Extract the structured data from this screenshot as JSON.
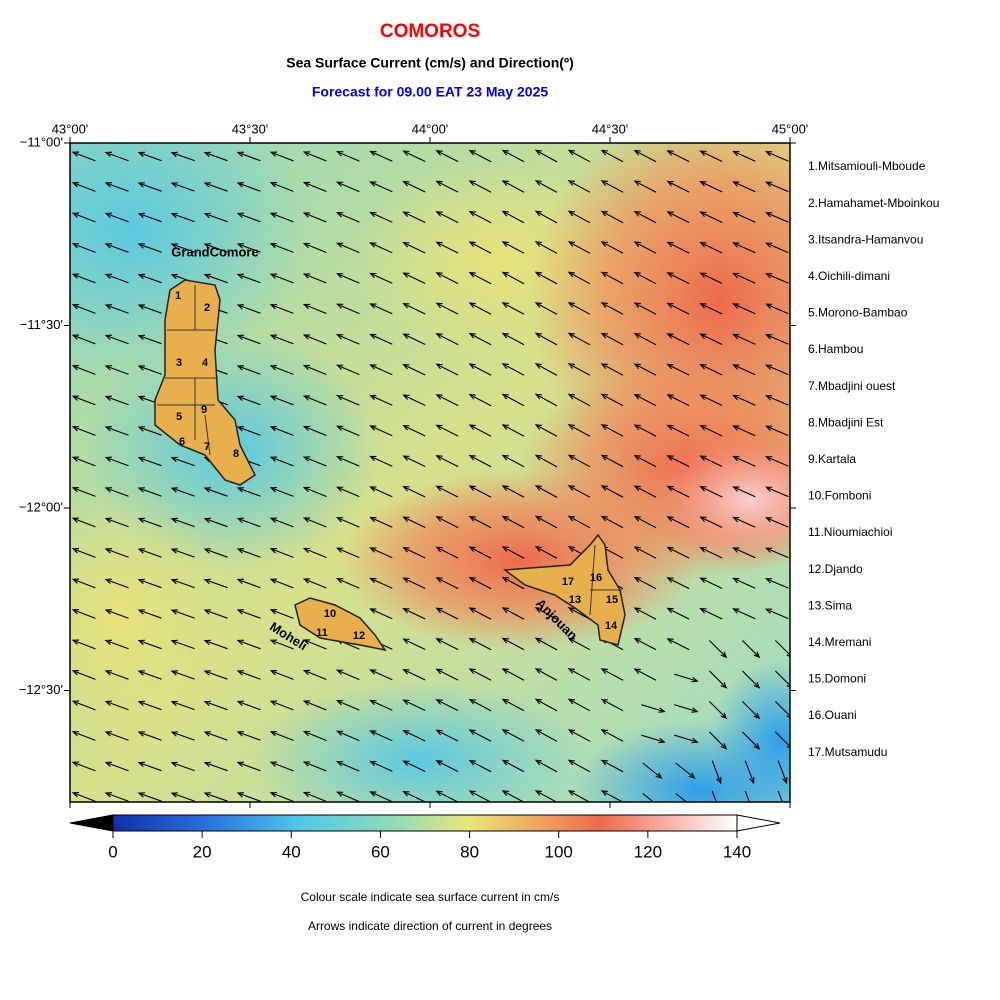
{
  "header": {
    "title": "COMOROS",
    "subtitle": "Sea Surface Current (cm/s) and Direction(º)",
    "forecast": "Forecast for  09.00 EAT 23 May 2025"
  },
  "map": {
    "x_ticks": [
      "43°00'",
      "43°30'",
      "44°00'",
      "44°30'",
      "45°00'"
    ],
    "y_ticks": [
      "−11°00'",
      "−11°30'",
      "−12°00'",
      "−12°30'"
    ],
    "islands": [
      "GrandComore",
      "Moheli",
      "Anjouan"
    ],
    "numbers": [
      "1",
      "2",
      "3",
      "4",
      "5",
      "6",
      "7",
      "8",
      "9",
      "10",
      "11",
      "12",
      "13",
      "14",
      "15",
      "16",
      "17"
    ]
  },
  "regions": [
    "1.Mitsamiouli-Mboude",
    "2.Hamahamet-Mboinkou",
    "3.Itsandra-Hamanvou",
    "4.Oichili-dimani",
    "5.Morono-Bambao",
    "6.Hambou",
    "7.Mbadjini ouest",
    "8.Mbadjini Est",
    "9.Kartala",
    "10.Fomboni",
    "11.Nioumiachioi",
    "12.Djando",
    "13.Sima",
    "14.Mremani",
    "15.Domoni",
    "16.Ouani",
    "17.Mutsamudu"
  ],
  "colorbar": {
    "ticks": [
      0,
      20,
      40,
      60,
      80,
      100,
      120,
      140
    ]
  },
  "notes": [
    "Colour scale indicate sea surface current in cm/s",
    "Arrows indicate direction of current in degrees"
  ]
}
